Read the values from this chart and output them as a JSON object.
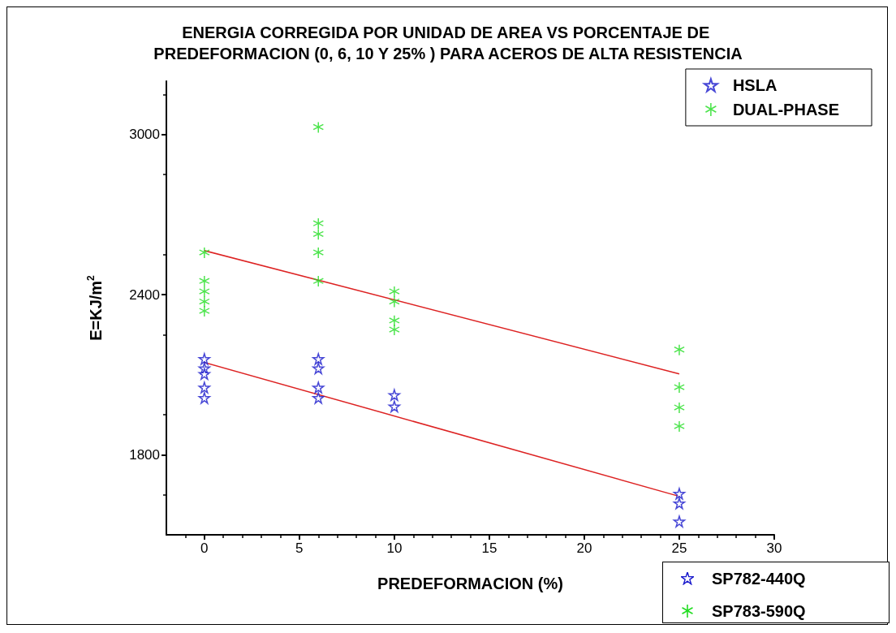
{
  "chart_data": {
    "type": "scatter",
    "title": "ENERGIA CORREGIDA POR UNIDAD DE AREA VS PORCENTAJE DE PREDEFORMACION (0, 6, 10 Y 25% ) PARA ACEROS DE ALTA RESISTENCIA",
    "xlabel": "PREDEFORMACION (%)",
    "ylabel": "E=KJ/m$^{2}$",
    "series": [
      {
        "name": "HSLA",
        "color": "#1a1acc",
        "marker": "star",
        "x": [
          0,
          0,
          0,
          0,
          0,
          6,
          6,
          6,
          6,
          10,
          10,
          25,
          25,
          25
        ],
        "values": [
          2159,
          2124,
          2103,
          2052,
          2013,
          2159,
          2124,
          2052,
          2013,
          2024,
          1981,
          1654,
          1618,
          1550
        ]
      },
      {
        "name": "DUAL-PHASE",
        "color": "#22dd22",
        "marker": "cross",
        "x": [
          0,
          0,
          0,
          0,
          0,
          6,
          6,
          6,
          6,
          6,
          10,
          10,
          10,
          10,
          25,
          25,
          25,
          25
        ],
        "values": [
          2557,
          2450,
          2411,
          2373,
          2338,
          3027,
          2666,
          2626,
          2557,
          2450,
          2411,
          2373,
          2302,
          2268,
          2193,
          2052,
          1976,
          1906
        ]
      },
      {
        "type": "line",
        "color": "#dd2222",
        "marker": "none",
        "x": [
          0,
          25
        ],
        "values": [
          2146,
          1644
        ]
      },
      {
        "type": "line",
        "color": "#dd2222",
        "marker": "none",
        "x": [
          0,
          25
        ],
        "values": [
          2565,
          2103
        ]
      }
    ],
    "annotations": [
      "SP782-440Q",
      "SP783-590Q"
    ],
    "xlim": [
      -2,
      30
    ],
    "xticks": [
      0,
      5,
      10,
      15,
      20,
      25,
      30
    ],
    "ylim": [
      1500,
      3200
    ],
    "yticks": [
      1800,
      2400,
      3000
    ],
    "grid": false,
    "legend": "top right"
  }
}
